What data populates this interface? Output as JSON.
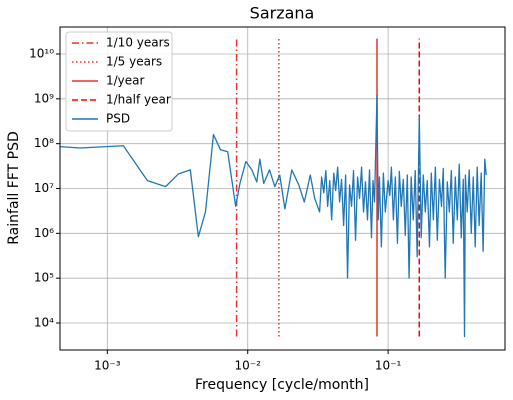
{
  "chart_data": {
    "type": "line",
    "title": "Sarzana",
    "x_label": "Frequency [cycle/month]",
    "y_label": "Rainfall FFT PSD",
    "log_x": true,
    "log_y": true,
    "grid": true,
    "legend": "upper left",
    "xlim": [
      0.00046,
      0.68
    ],
    "ylim": [
      2500,
      40000000000
    ],
    "xticks": [
      {
        "value": 0.001,
        "label": "10⁻³"
      },
      {
        "value": 0.01,
        "label": "10⁻²"
      },
      {
        "value": 0.1,
        "label": "10⁻¹"
      }
    ],
    "yticks": [
      {
        "value": 10000,
        "label": "10⁴"
      },
      {
        "value": 100000,
        "label": "10⁵"
      },
      {
        "value": 1000000,
        "label": "10⁶"
      },
      {
        "value": 10000000,
        "label": "10⁷"
      },
      {
        "value": 100000000,
        "label": "10⁸"
      },
      {
        "value": 1000000000,
        "label": "10⁹"
      },
      {
        "value": 10000000000,
        "label": "10¹⁰"
      }
    ],
    "vlines": [
      {
        "name": "1/10 years",
        "x": 0.008333,
        "ymin": 5000,
        "ymax": 22000000000,
        "color": "#e8322f",
        "style": "dashdot"
      },
      {
        "name": "1/5 years",
        "x": 0.016667,
        "ymin": 5000,
        "ymax": 22000000000,
        "color": "#e8322f",
        "style": "dotted"
      },
      {
        "name": "1/year",
        "x": 0.083333,
        "ymin": 5000,
        "ymax": 22000000000,
        "color": "#e8322f",
        "style": "solid"
      },
      {
        "name": "1/half year",
        "x": 0.166667,
        "ymin": 5000,
        "ymax": 22000000000,
        "color": "#ff0000",
        "style": "dashed"
      }
    ],
    "series": [
      {
        "name": "PSD",
        "color": "#1f77b4",
        "x": [
          0.00046,
          0.00064,
          0.0013,
          0.00193,
          0.0026,
          0.0032,
          0.0039,
          0.00445,
          0.005,
          0.0057,
          0.0064,
          0.0072,
          0.0082,
          0.0088,
          0.0097,
          0.0107,
          0.0116,
          0.0122,
          0.013,
          0.0143,
          0.0156,
          0.0169,
          0.0184,
          0.0206,
          0.0231,
          0.0253,
          0.0279,
          0.03,
          0.0325,
          0.0336,
          0.0348,
          0.036,
          0.0371,
          0.0384,
          0.0396,
          0.041,
          0.0423,
          0.0437,
          0.0451,
          0.0466,
          0.0482,
          0.0498,
          0.0514,
          0.0531,
          0.0549,
          0.0567,
          0.0586,
          0.0606,
          0.0626,
          0.0647,
          0.0668,
          0.069,
          0.0713,
          0.0737,
          0.0761,
          0.078,
          0.08,
          0.0833,
          0.085,
          0.0867,
          0.0895,
          0.0925,
          0.0955,
          0.1,
          0.1028,
          0.1055,
          0.109,
          0.1126,
          0.1165,
          0.1202,
          0.124,
          0.1283,
          0.1325,
          0.137,
          0.141,
          0.146,
          0.151,
          0.156,
          0.161,
          0.1667,
          0.172,
          0.178,
          0.184,
          0.19,
          0.197,
          0.203,
          0.21,
          0.217,
          0.224,
          0.232,
          0.24,
          0.247,
          0.255,
          0.264,
          0.273,
          0.282,
          0.291,
          0.301,
          0.311,
          0.321,
          0.332,
          0.343,
          0.35,
          0.355,
          0.366,
          0.378,
          0.391,
          0.404,
          0.417,
          0.431,
          0.445,
          0.46,
          0.475,
          0.488,
          0.5
        ],
        "values": [
          86000000,
          80000000,
          90000000,
          15000000,
          11000000,
          21000000,
          26000000,
          840000,
          3000000,
          160000000,
          73000000,
          66000000,
          4000000,
          13000000,
          40000000,
          26000000,
          14000000,
          45000000,
          13000000,
          26000000,
          11000000,
          20000000,
          3500000,
          26000000,
          12000000,
          5000000,
          20000000,
          6000000,
          3000000,
          18000000,
          8000000,
          25000000,
          4000000,
          15000000,
          2000000,
          22000000,
          9000000,
          30000000,
          5000000,
          16000000,
          1500000,
          20000000,
          100000,
          12000000,
          4000000,
          25000000,
          700000,
          18000000,
          6000000,
          30000000,
          3000000,
          14000000,
          2000000,
          26000000,
          800000,
          15000000,
          5000000,
          1200000000,
          2000000,
          18000000,
          500000,
          22000000,
          3000000,
          15000000,
          7000000,
          30000000,
          2000000,
          18000000,
          600000,
          24000000,
          4000000,
          16000000,
          900000,
          20000000,
          100000,
          18000000,
          2000000,
          25000000,
          300000,
          400000000,
          800000,
          20000000,
          3000000,
          15000000,
          500000,
          22000000,
          2000000,
          30000000,
          700000,
          16000000,
          4000000,
          28000000,
          100000,
          14000000,
          3000000,
          25000000,
          600000,
          18000000,
          2000000,
          35000000,
          800000,
          16000000,
          5000,
          20000000,
          3000000,
          26000000,
          1000000,
          18000000,
          500000,
          30000000,
          1500000,
          22000000,
          400000,
          45000000,
          20000000
        ]
      }
    ]
  }
}
